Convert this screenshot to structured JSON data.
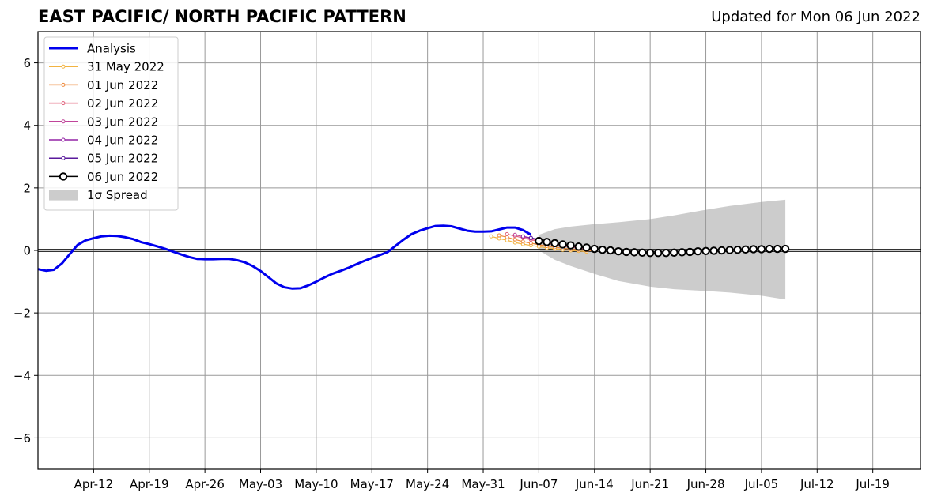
{
  "chart_data": {
    "type": "line",
    "title": "EAST PACIFIC/ NORTH PACIFIC PATTERN",
    "subtitle": "Updated for Mon 06 Jun 2022",
    "xlabel": "",
    "ylabel": "",
    "x_start": "2022-04-05",
    "x_end": "2022-07-25",
    "ylim": [
      -7,
      7
    ],
    "yticks": [
      -6,
      -4,
      -2,
      0,
      2,
      4,
      6
    ],
    "ytick_labels": [
      "−6",
      "−4",
      "−2",
      "0",
      "2",
      "4",
      "6"
    ],
    "xticks": [
      "2022-04-12",
      "2022-04-19",
      "2022-04-26",
      "2022-05-03",
      "2022-05-10",
      "2022-05-17",
      "2022-05-24",
      "2022-05-31",
      "2022-06-07",
      "2022-06-14",
      "2022-06-21",
      "2022-06-28",
      "2022-07-05",
      "2022-07-12",
      "2022-07-19"
    ],
    "xtick_labels": [
      "Apr-12",
      "Apr-19",
      "Apr-26",
      "May-03",
      "May-10",
      "May-17",
      "May-24",
      "May-31",
      "Jun-07",
      "Jun-14",
      "Jun-21",
      "Jun-28",
      "Jul-05",
      "Jul-12",
      "Jul-19"
    ],
    "grid": true,
    "legend_position": "top-left",
    "colors": {
      "analysis": "#0000ee",
      "spread": "#cccccc",
      "grid": "#999999",
      "zero_line": "#333333"
    },
    "spread": {
      "name": "1σ Spread",
      "x": [
        "2022-06-07",
        "2022-06-09",
        "2022-06-11",
        "2022-06-14",
        "2022-06-17",
        "2022-06-21",
        "2022-06-24",
        "2022-06-28",
        "2022-07-01",
        "2022-07-05",
        "2022-07-08"
      ],
      "upper": [
        0.5,
        0.68,
        0.76,
        0.84,
        0.9,
        1.0,
        1.12,
        1.3,
        1.42,
        1.55,
        1.62
      ],
      "lower": [
        0.0,
        -0.3,
        -0.5,
        -0.75,
        -0.98,
        -1.16,
        -1.24,
        -1.3,
        -1.35,
        -1.45,
        -1.57
      ]
    },
    "series": [
      {
        "name": "Analysis",
        "color": "#0000ee",
        "x": [
          "2022-04-05",
          "2022-04-06",
          "2022-04-07",
          "2022-04-08",
          "2022-04-09",
          "2022-04-10",
          "2022-04-11",
          "2022-04-12",
          "2022-04-13",
          "2022-04-14",
          "2022-04-15",
          "2022-04-16",
          "2022-04-17",
          "2022-04-18",
          "2022-04-19",
          "2022-04-20",
          "2022-04-21",
          "2022-04-22",
          "2022-04-23",
          "2022-04-24",
          "2022-04-25",
          "2022-04-26",
          "2022-04-27",
          "2022-04-28",
          "2022-04-29",
          "2022-04-30",
          "2022-05-01",
          "2022-05-02",
          "2022-05-03",
          "2022-05-04",
          "2022-05-05",
          "2022-05-06",
          "2022-05-07",
          "2022-05-08",
          "2022-05-09",
          "2022-05-10",
          "2022-05-11",
          "2022-05-12",
          "2022-05-13",
          "2022-05-14",
          "2022-05-15",
          "2022-05-16",
          "2022-05-17",
          "2022-05-18",
          "2022-05-19",
          "2022-05-20",
          "2022-05-21",
          "2022-05-22",
          "2022-05-23",
          "2022-05-24",
          "2022-05-25",
          "2022-05-26",
          "2022-05-27",
          "2022-05-28",
          "2022-05-29",
          "2022-05-30",
          "2022-05-31",
          "2022-06-01",
          "2022-06-02",
          "2022-06-03",
          "2022-06-04",
          "2022-06-05",
          "2022-06-06"
        ],
        "y": [
          -0.6,
          -0.65,
          -0.62,
          -0.42,
          -0.12,
          0.18,
          0.32,
          0.39,
          0.45,
          0.47,
          0.46,
          0.42,
          0.36,
          0.26,
          0.2,
          0.13,
          0.05,
          -0.04,
          -0.13,
          -0.21,
          -0.27,
          -0.28,
          -0.28,
          -0.27,
          -0.27,
          -0.31,
          -0.38,
          -0.5,
          -0.66,
          -0.86,
          -1.06,
          -1.18,
          -1.22,
          -1.21,
          -1.12,
          -1.0,
          -0.87,
          -0.75,
          -0.66,
          -0.56,
          -0.45,
          -0.34,
          -0.24,
          -0.15,
          -0.05,
          0.15,
          0.35,
          0.52,
          0.63,
          0.71,
          0.78,
          0.79,
          0.77,
          0.7,
          0.63,
          0.6,
          0.6,
          0.61,
          0.67,
          0.73,
          0.73,
          0.65,
          0.5
        ]
      },
      {
        "name": "31 May 2022",
        "color": "#f2b341",
        "x": [
          "2022-06-01",
          "2022-06-02",
          "2022-06-03",
          "2022-06-04",
          "2022-06-05",
          "2022-06-06",
          "2022-06-07",
          "2022-06-08",
          "2022-06-09",
          "2022-06-10",
          "2022-06-11",
          "2022-06-12",
          "2022-06-13"
        ],
        "y": [
          0.45,
          0.38,
          0.32,
          0.25,
          0.2,
          0.16,
          0.12,
          0.08,
          0.05,
          0.02,
          0.0,
          -0.02,
          -0.04
        ]
      },
      {
        "name": "01 Jun 2022",
        "color": "#ee8a3c",
        "x": [
          "2022-06-02",
          "2022-06-03",
          "2022-06-04",
          "2022-06-05",
          "2022-06-06",
          "2022-06-07",
          "2022-06-08",
          "2022-06-09",
          "2022-06-10",
          "2022-06-11",
          "2022-06-12",
          "2022-06-13",
          "2022-06-14"
        ],
        "y": [
          0.48,
          0.42,
          0.35,
          0.28,
          0.23,
          0.18,
          0.14,
          0.1,
          0.07,
          0.04,
          0.02,
          0.0,
          -0.02
        ]
      },
      {
        "name": "02 Jun 2022",
        "color": "#e0607a",
        "x": [
          "2022-06-03",
          "2022-06-04",
          "2022-06-05",
          "2022-06-06",
          "2022-06-07",
          "2022-06-08",
          "2022-06-09",
          "2022-06-10",
          "2022-06-11",
          "2022-06-12",
          "2022-06-13",
          "2022-06-14"
        ],
        "y": [
          0.52,
          0.46,
          0.4,
          0.34,
          0.28,
          0.22,
          0.18,
          0.14,
          0.1,
          0.07,
          0.04,
          0.02
        ]
      },
      {
        "name": "03 Jun 2022",
        "color": "#c0449a",
        "x": [
          "2022-06-04",
          "2022-06-05",
          "2022-06-06",
          "2022-06-07",
          "2022-06-08",
          "2022-06-09",
          "2022-06-10",
          "2022-06-11",
          "2022-06-12",
          "2022-06-13",
          "2022-06-14"
        ],
        "y": [
          0.5,
          0.44,
          0.38,
          0.32,
          0.27,
          0.22,
          0.17,
          0.13,
          0.1,
          0.07,
          0.05
        ]
      },
      {
        "name": "04 Jun 2022",
        "color": "#9424a6",
        "x": [
          "2022-06-05",
          "2022-06-06",
          "2022-06-07",
          "2022-06-08",
          "2022-06-09",
          "2022-06-10",
          "2022-06-11",
          "2022-06-12",
          "2022-06-13",
          "2022-06-14"
        ],
        "y": [
          0.45,
          0.4,
          0.35,
          0.3,
          0.25,
          0.2,
          0.16,
          0.12,
          0.09,
          0.06
        ]
      },
      {
        "name": "05 Jun 2022",
        "color": "#5a1a9c",
        "x": [
          "2022-06-06",
          "2022-06-07",
          "2022-06-08",
          "2022-06-09",
          "2022-06-10",
          "2022-06-11",
          "2022-06-12",
          "2022-06-13",
          "2022-06-14"
        ],
        "y": [
          0.4,
          0.34,
          0.29,
          0.24,
          0.2,
          0.16,
          0.12,
          0.09,
          0.06
        ]
      },
      {
        "name": "06 Jun 2022",
        "color": "#000000",
        "x": [
          "2022-06-07",
          "2022-06-08",
          "2022-06-09",
          "2022-06-10",
          "2022-06-11",
          "2022-06-12",
          "2022-06-13",
          "2022-06-14",
          "2022-06-15",
          "2022-06-16",
          "2022-06-17",
          "2022-06-18",
          "2022-06-19",
          "2022-06-20",
          "2022-06-21",
          "2022-06-22",
          "2022-06-23",
          "2022-06-24",
          "2022-06-25",
          "2022-06-26",
          "2022-06-27",
          "2022-06-28",
          "2022-06-29",
          "2022-06-30",
          "2022-07-01",
          "2022-07-02",
          "2022-07-03",
          "2022-07-04",
          "2022-07-05",
          "2022-07-06",
          "2022-07-07",
          "2022-07-08"
        ],
        "y": [
          0.3,
          0.27,
          0.23,
          0.19,
          0.16,
          0.12,
          0.09,
          0.05,
          0.02,
          0.0,
          -0.03,
          -0.05,
          -0.06,
          -0.07,
          -0.08,
          -0.08,
          -0.08,
          -0.07,
          -0.06,
          -0.05,
          -0.03,
          -0.02,
          -0.01,
          0.0,
          0.01,
          0.02,
          0.03,
          0.04,
          0.04,
          0.05,
          0.05,
          0.05
        ]
      }
    ]
  }
}
